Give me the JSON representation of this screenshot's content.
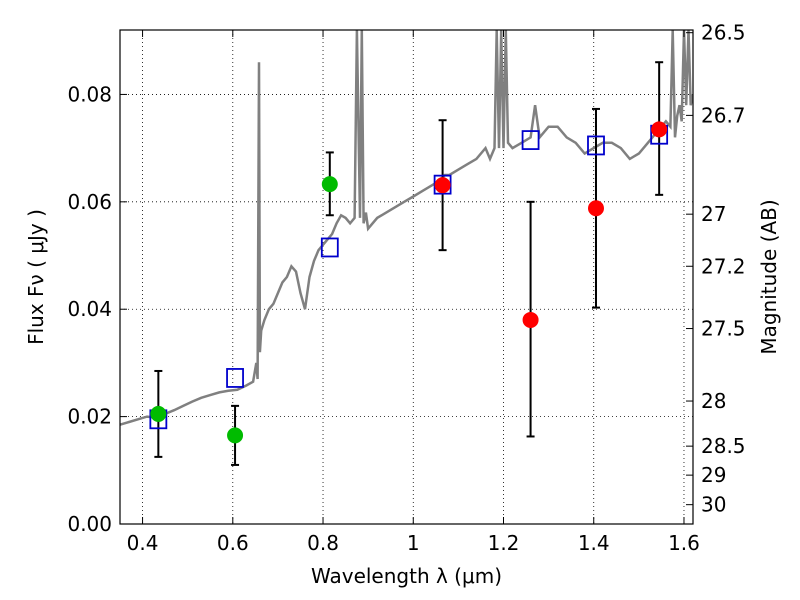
{
  "chart_data": {
    "type": "scatter",
    "xlabel": "Wavelength  λ (μm)",
    "ylabel": "Flux  Fν  ( μJy )",
    "ylabel_right": "Magnitude (AB)",
    "xlim": [
      0.35,
      1.62
    ],
    "ylim": [
      0.0,
      0.092
    ],
    "grid": true,
    "x_ticks": [
      0.4,
      0.6,
      0.8,
      1.0,
      1.2,
      1.4,
      1.6
    ],
    "x_tick_labels": [
      "0.4",
      "0.6",
      "0.8",
      "1",
      "1.2",
      "1.4",
      "1.6"
    ],
    "y_ticks": [
      0.0,
      0.02,
      0.04,
      0.06,
      0.08
    ],
    "y_tick_labels": [
      "0.00",
      "0.02",
      "0.04",
      "0.06",
      "0.08"
    ],
    "right_ticks": [
      {
        "label": "26.5",
        "flux": 0.0915
      },
      {
        "label": "26.7",
        "flux": 0.0761
      },
      {
        "label": "27",
        "flux": 0.0577
      },
      {
        "label": "27.2",
        "flux": 0.048
      },
      {
        "label": "27.5",
        "flux": 0.0364
      },
      {
        "label": "28",
        "flux": 0.0229
      },
      {
        "label": "28.5",
        "flux": 0.0145
      },
      {
        "label": "29",
        "flux": 0.0091
      },
      {
        "label": "30",
        "flux": 0.0036
      }
    ],
    "model_spectrum": {
      "color": "#808080",
      "x": [
        0.35,
        0.37,
        0.39,
        0.41,
        0.43,
        0.45,
        0.47,
        0.49,
        0.51,
        0.53,
        0.55,
        0.57,
        0.59,
        0.61,
        0.63,
        0.645,
        0.652,
        0.655,
        0.658,
        0.66,
        0.663,
        0.67,
        0.68,
        0.69,
        0.7,
        0.71,
        0.72,
        0.73,
        0.74,
        0.75,
        0.76,
        0.77,
        0.78,
        0.79,
        0.8,
        0.81,
        0.82,
        0.83,
        0.84,
        0.85,
        0.86,
        0.87,
        0.875,
        0.882,
        0.886,
        0.89,
        0.895,
        0.9,
        0.92,
        0.94,
        0.96,
        0.98,
        1.0,
        1.02,
        1.04,
        1.06,
        1.07,
        1.08,
        1.1,
        1.12,
        1.14,
        1.16,
        1.17,
        1.18,
        1.185,
        1.19,
        1.195,
        1.2,
        1.205,
        1.21,
        1.22,
        1.24,
        1.26,
        1.27,
        1.28,
        1.3,
        1.32,
        1.34,
        1.36,
        1.38,
        1.4,
        1.42,
        1.44,
        1.46,
        1.48,
        1.5,
        1.52,
        1.54,
        1.56,
        1.57,
        1.575,
        1.58,
        1.585,
        1.59,
        1.595,
        1.6,
        1.605,
        1.61,
        1.615,
        1.62
      ],
      "y": [
        0.0185,
        0.019,
        0.0195,
        0.02,
        0.0198,
        0.0205,
        0.0212,
        0.022,
        0.0228,
        0.0235,
        0.024,
        0.0245,
        0.0248,
        0.025,
        0.0258,
        0.0265,
        0.03,
        0.027,
        0.086,
        0.032,
        0.036,
        0.038,
        0.04,
        0.041,
        0.043,
        0.045,
        0.046,
        0.048,
        0.047,
        0.043,
        0.04,
        0.046,
        0.049,
        0.051,
        0.052,
        0.053,
        0.054,
        0.056,
        0.0575,
        0.057,
        0.056,
        0.057,
        0.092,
        0.057,
        0.092,
        0.056,
        0.058,
        0.055,
        0.057,
        0.058,
        0.059,
        0.06,
        0.061,
        0.062,
        0.063,
        0.064,
        0.065,
        0.065,
        0.066,
        0.067,
        0.068,
        0.07,
        0.068,
        0.07,
        0.092,
        0.07,
        0.092,
        0.07,
        0.092,
        0.071,
        0.07,
        0.071,
        0.072,
        0.078,
        0.072,
        0.074,
        0.074,
        0.072,
        0.071,
        0.069,
        0.07,
        0.071,
        0.071,
        0.07,
        0.068,
        0.069,
        0.071,
        0.073,
        0.075,
        0.074,
        0.092,
        0.072,
        0.076,
        0.078,
        0.075,
        0.092,
        0.078,
        0.092,
        0.078,
        0.08
      ]
    },
    "model_points": {
      "color": "#0000cc",
      "marker": "open-square",
      "x": [
        0.435,
        0.605,
        0.815,
        1.065,
        1.26,
        1.405,
        1.545
      ],
      "y": [
        0.0195,
        0.0272,
        0.0515,
        0.0632,
        0.0715,
        0.0705,
        0.0725
      ]
    },
    "observed_detections": {
      "color": "#00bb00",
      "x": [
        0.435,
        0.605,
        0.815
      ],
      "y": [
        0.0205,
        0.0165,
        0.0633
      ],
      "y_low": [
        0.0125,
        0.011,
        0.0575
      ],
      "y_high": [
        0.0285,
        0.022,
        0.0692
      ]
    },
    "observed_red": {
      "color": "#ff0000",
      "x": [
        1.065,
        1.26,
        1.405,
        1.545
      ],
      "y": [
        0.0631,
        0.038,
        0.0588,
        0.0735
      ],
      "y_low": [
        0.051,
        0.0163,
        0.0403,
        0.0613
      ],
      "y_high": [
        0.0752,
        0.06,
        0.0773,
        0.086
      ]
    }
  }
}
